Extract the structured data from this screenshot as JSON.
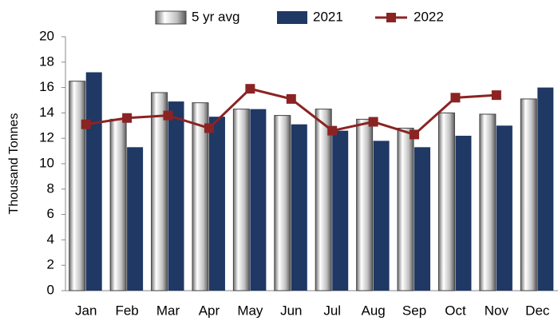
{
  "chart_data": {
    "type": "bar",
    "categories": [
      "Jan",
      "Feb",
      "Mar",
      "Apr",
      "May",
      "Jun",
      "Jul",
      "Aug",
      "Sep",
      "Oct",
      "Nov",
      "Dec"
    ],
    "y_label": "Thousand Tonnes",
    "series": [
      {
        "name": "5 yr avg",
        "type": "bar",
        "color": "#c0c0c0",
        "values": [
          16.5,
          13.5,
          15.6,
          14.8,
          14.3,
          13.8,
          14.3,
          13.5,
          12.8,
          14.0,
          13.9,
          15.1
        ]
      },
      {
        "name": "2021",
        "type": "bar",
        "color": "#1f3864",
        "values": [
          17.2,
          11.3,
          14.9,
          13.7,
          14.3,
          13.1,
          12.6,
          11.8,
          11.3,
          12.2,
          13.0,
          16.0
        ]
      },
      {
        "name": "2022",
        "type": "line",
        "color": "#8b2323",
        "values": [
          13.1,
          13.6,
          13.8,
          12.8,
          15.9,
          15.1,
          12.6,
          13.3,
          12.3,
          15.2,
          15.4,
          null
        ]
      }
    ],
    "ylim": [
      0,
      20
    ],
    "yticks": [
      0,
      2,
      4,
      6,
      8,
      10,
      12,
      14,
      16,
      18,
      20
    ],
    "grid": false,
    "legend": "top"
  }
}
